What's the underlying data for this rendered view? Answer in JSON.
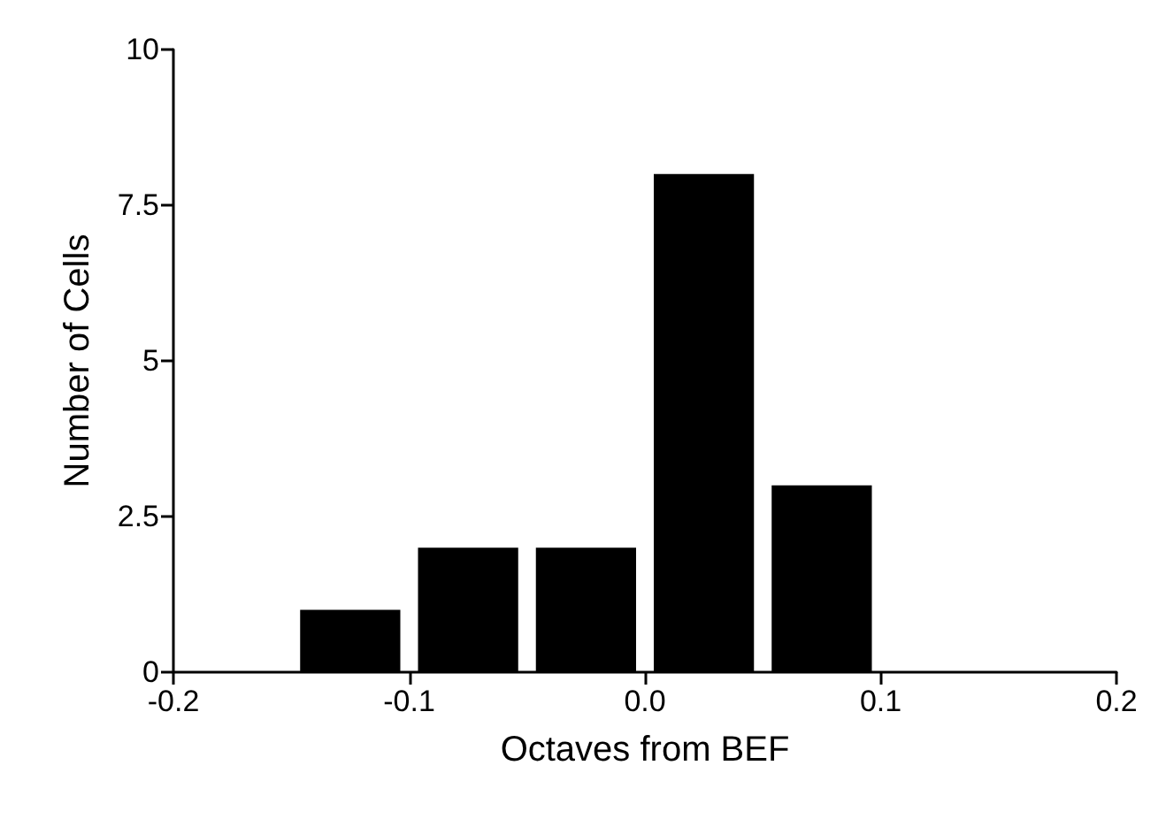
{
  "chart_data": {
    "type": "histogram",
    "xlabel": "Octaves from BEF",
    "ylabel": "Number of Cells",
    "bins": [
      -0.15,
      -0.1,
      -0.05,
      0,
      0.05,
      0.1
    ],
    "values": [
      1,
      2,
      2,
      8,
      3
    ],
    "color": "#000000",
    "xlim": [
      -0.2,
      0.2
    ],
    "xticks": [
      -0.2,
      -0.1,
      {
        "value": 0,
        "label": "0.0"
      },
      0.1,
      0.2
    ],
    "ylim": [
      0,
      10
    ],
    "yticks": [
      0,
      2.5,
      5,
      7.5,
      10
    ],
    "grid": false
  }
}
